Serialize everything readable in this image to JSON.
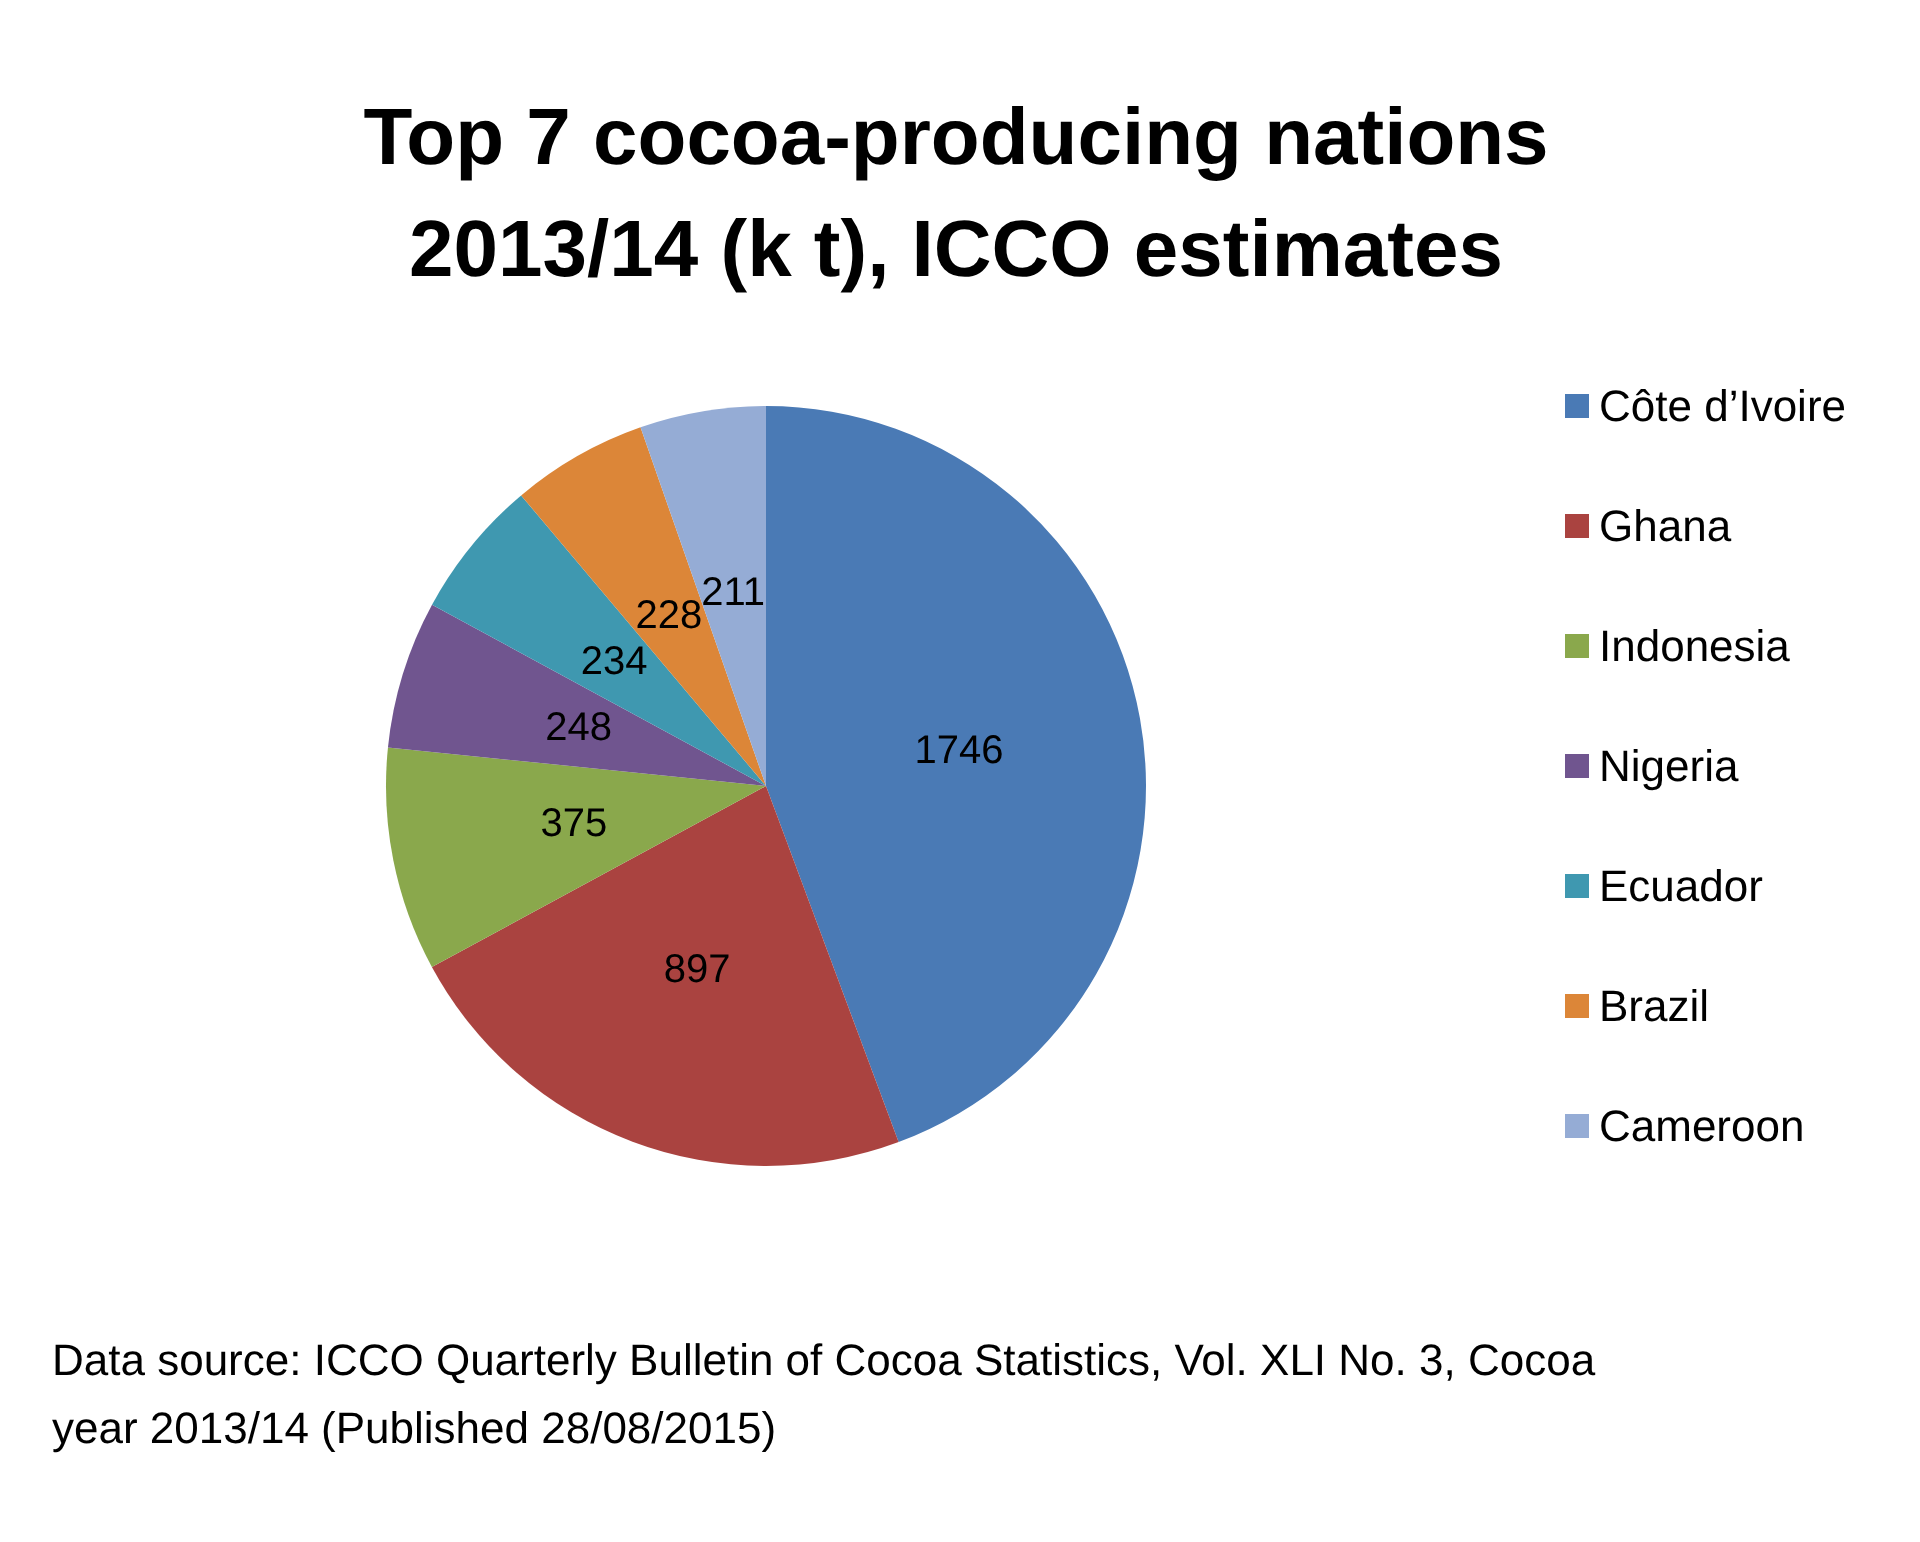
{
  "chart_data": {
    "type": "pie",
    "title": "Top 7 cocoa-producing nations\n2013/14 (k t), ICCO estimates",
    "categories": [
      "Côte d’Ivoire",
      "Ghana",
      "Indonesia",
      "Nigeria",
      "Ecuador",
      "Brazil",
      "Cameroon"
    ],
    "values": [
      1746,
      897,
      375,
      248,
      234,
      228,
      211
    ],
    "colors": [
      "#4a7ab5",
      "#aa4340",
      "#8aa84c",
      "#70558f",
      "#3f98b0",
      "#dc8638",
      "#95acd5"
    ],
    "data_labels": true,
    "legend": "right",
    "annotations": [
      "Data source: ICCO Quarterly Bulletin of Cocoa Statistics, Vol. XLI No. 3, Cocoa year 2013/14 (Published 28/08/2015)"
    ]
  }
}
